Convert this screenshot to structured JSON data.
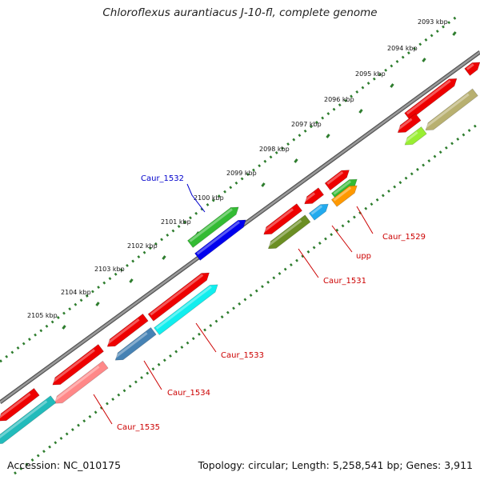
{
  "title": "Chloroflexus aurantiacus J-10-fl, complete genome",
  "footer": {
    "accession": "Accession: NC_010175",
    "topology": "Topology: circular; Length: 5,258,541 bp; Genes: 3,911"
  },
  "colors": {
    "backbone": "#7f7f7f",
    "dots": "#2e7d2e",
    "red_label": "#cc0000",
    "blue_label": "#0000cc"
  },
  "ticks": [
    {
      "label": "2093 kbp"
    },
    {
      "label": "2094 kbp"
    },
    {
      "label": "2095 kbp"
    },
    {
      "label": "2096 kbp"
    },
    {
      "label": "2097 kbp"
    },
    {
      "label": "2098 kbp"
    },
    {
      "label": "2099 kbp"
    },
    {
      "label": "2100 kbp"
    },
    {
      "label": "2101 kbp"
    },
    {
      "label": "2102 kbp"
    },
    {
      "label": "2103 kbp"
    },
    {
      "label": "2104 kbp"
    },
    {
      "label": "2105 kbp"
    }
  ],
  "gene_labels": [
    {
      "name": "Caur_1532",
      "color": "#0000cc"
    },
    {
      "name": "Caur_1529",
      "color": "#cc0000"
    },
    {
      "name": "upp",
      "color": "#cc0000"
    },
    {
      "name": "Caur_1531",
      "color": "#cc0000"
    },
    {
      "name": "Caur_1533",
      "color": "#cc0000"
    },
    {
      "name": "Caur_1534",
      "color": "#cc0000"
    },
    {
      "name": "Caur_1535",
      "color": "#cc0000"
    }
  ]
}
